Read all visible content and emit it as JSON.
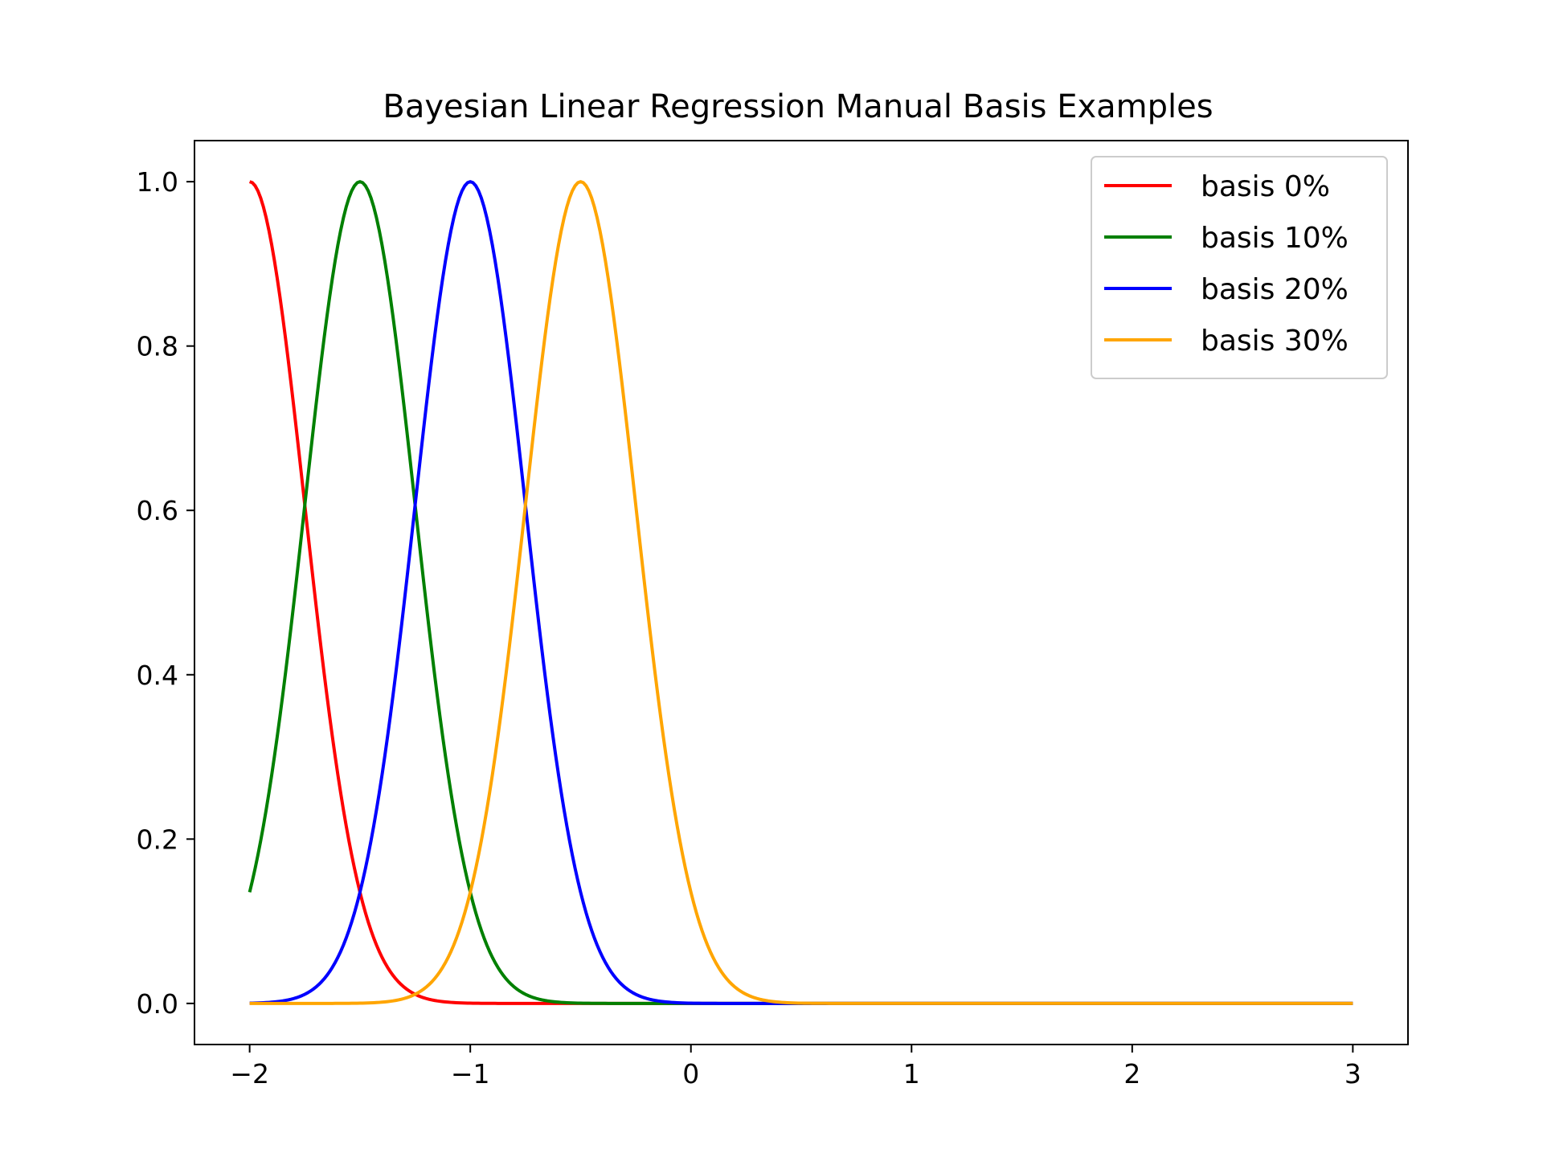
{
  "chart_data": {
    "type": "line",
    "title": "Bayesian Linear Regression Manual Basis Examples",
    "xlabel": "",
    "ylabel": "",
    "xlim": [
      -2.25,
      3.25
    ],
    "ylim": [
      -0.05,
      1.05
    ],
    "x_ticks": [
      -2,
      -1,
      0,
      1,
      2,
      3
    ],
    "x_tick_labels": [
      "−2",
      "−1",
      "0",
      "1",
      "2",
      "3"
    ],
    "y_ticks": [
      0.0,
      0.2,
      0.4,
      0.6,
      0.8,
      1.0
    ],
    "y_tick_labels": [
      "0.0",
      "0.2",
      "0.4",
      "0.6",
      "0.8",
      "1.0"
    ],
    "grid": false,
    "legend_position": "top-right",
    "x_range": [
      -2,
      3
    ],
    "series": [
      {
        "name": "basis 0%",
        "color": "#ff0000",
        "center": -2.0,
        "width": 0.25
      },
      {
        "name": "basis 10%",
        "color": "#008000",
        "center": -1.5,
        "width": 0.25
      },
      {
        "name": "basis 20%",
        "color": "#0000ff",
        "center": -1.0,
        "width": 0.25
      },
      {
        "name": "basis 30%",
        "color": "#ffa500",
        "center": -0.5,
        "width": 0.25
      }
    ]
  }
}
